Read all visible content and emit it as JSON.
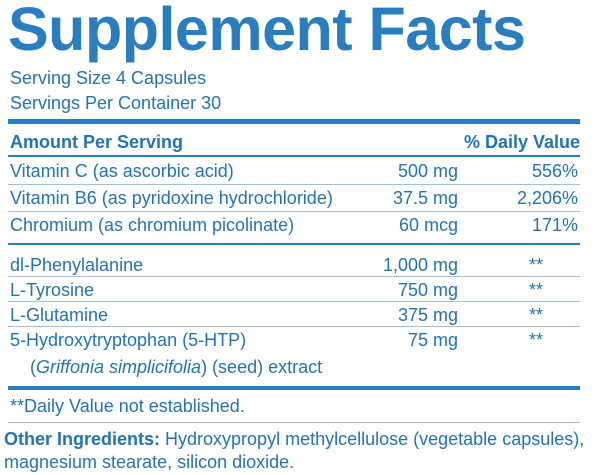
{
  "title": "Supplement Facts",
  "serving_size": "Serving Size 4 Capsules",
  "servings_per_container": "Servings Per Container 30",
  "header": {
    "amount": "Amount Per Serving",
    "daily_value": "% Daily Value"
  },
  "vitamins": [
    {
      "name": "Vitamin C (as ascorbic acid)",
      "amount": "500 mg",
      "dv": "556%"
    },
    {
      "name": "Vitamin B6 (as pyridoxine hydrochloride)",
      "amount": "37.5 mg",
      "dv": "2,206%"
    },
    {
      "name": "Chromium (as chromium picolinate)",
      "amount": "60 mcg",
      "dv": "171%"
    }
  ],
  "other_nutrients": [
    {
      "name": "dl-Phenylalanine",
      "amount": "1,000 mg",
      "dv": "**"
    },
    {
      "name": "L-Tyrosine",
      "amount": "750 mg",
      "dv": "**"
    },
    {
      "name": "L-Glutamine",
      "amount": "375 mg",
      "dv": "**"
    },
    {
      "name": "5-Hydroxytryptophan (5-HTP)",
      "amount": "75 mg",
      "dv": "**"
    }
  ],
  "htp_source": {
    "open": "(",
    "species": "Griffonia simplicifolia",
    "rest": ") (seed) extract"
  },
  "footnote": "**Daily Value not established.",
  "other_ingredients": {
    "label": "Other Ingredients:",
    "text": "Hydroxypropyl methylcellulose (vegetable capsules), magnesium stearate, silicon dioxide."
  }
}
